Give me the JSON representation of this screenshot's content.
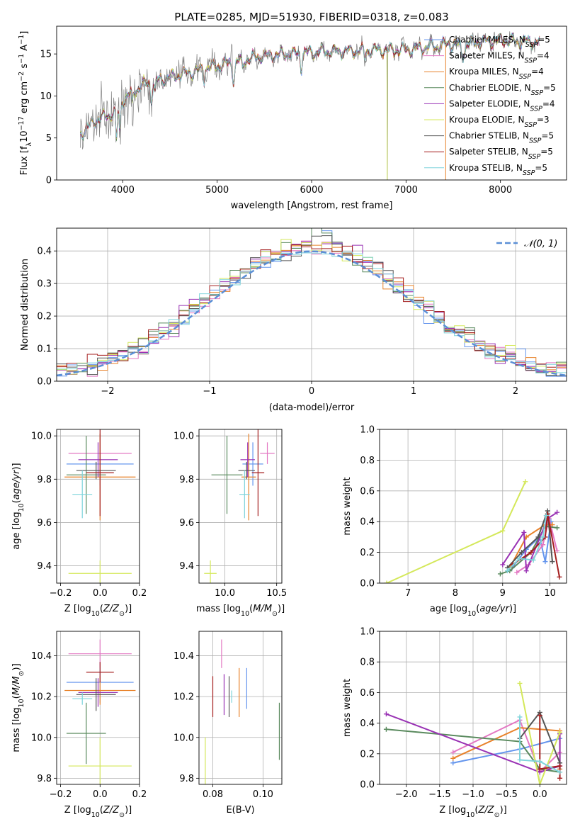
{
  "page": {
    "title": "PLATE=0285, MJD=51930, FIBERID=0318, z=0.083"
  },
  "chart_data": [
    {
      "id": "spectrum",
      "type": "line",
      "title": "PLATE=0285, MJD=51930, FIBERID=0318, z=0.083",
      "xlabel": "wavelength [Angstrom, rest frame]",
      "ylabel": "Flux [fλ10−17 erg cm−2 s−1 A−1]",
      "xlim": [
        3300,
        8700
      ],
      "ylim": [
        0,
        18.3
      ],
      "xticks": [
        4000,
        5000,
        6000,
        7000,
        8000
      ],
      "yticks": [
        0,
        5,
        10,
        15
      ],
      "grid": false,
      "legend_position": "right",
      "continuum_points": [
        [
          3550,
          5.5
        ],
        [
          3700,
          7
        ],
        [
          3900,
          8
        ],
        [
          4000,
          9.5
        ],
        [
          4200,
          11.3
        ],
        [
          4500,
          12.2
        ],
        [
          5000,
          13.6
        ],
        [
          5500,
          14.8
        ],
        [
          6000,
          15.2
        ],
        [
          6500,
          15.4
        ],
        [
          7000,
          15.5
        ],
        [
          7500,
          16.2
        ],
        [
          8000,
          16.6
        ],
        [
          8400,
          16.4
        ]
      ],
      "series": [
        {
          "name": "Chabrier MILES, NSSP=5",
          "color": "#6495ED"
        },
        {
          "name": "Salpeter MILES, NSSP=4",
          "color": "#E377C2"
        },
        {
          "name": "Kroupa MILES, NSSP=4",
          "color": "#E8822A"
        },
        {
          "name": "Chabrier ELODIE, NSSP=5",
          "color": "#5A8A5E"
        },
        {
          "name": "Salpeter ELODIE, NSSP=4",
          "color": "#9932B4"
        },
        {
          "name": "Kroupa ELODIE, NSSP=3",
          "color": "#D4E85A"
        },
        {
          "name": "Chabrier STELIB, NSSP=5",
          "color": "#555555"
        },
        {
          "name": "Salpeter STELIB, NSSP=5",
          "color": "#A51F1F"
        },
        {
          "name": "Kroupa STELIB, NSSP=5",
          "color": "#7FD4DB"
        }
      ]
    },
    {
      "id": "residuals",
      "type": "line",
      "xlabel": "(data-model)/error",
      "ylabel": "Normed distribution",
      "xlim": [
        -2.5,
        2.5
      ],
      "ylim": [
        0,
        0.47
      ],
      "xticks": [
        -2,
        -1,
        0,
        1,
        2
      ],
      "yticks": [
        0.0,
        0.1,
        0.2,
        0.3,
        0.4
      ],
      "grid": true,
      "legend": "𝒩(0, 1)",
      "legend_position": "top-right",
      "gaussian": {
        "mean": 0,
        "sigma": 1,
        "color": "#5B8FD6"
      },
      "histogram_step": 0.1,
      "histogram_colors": [
        "#6495ED",
        "#E377C2",
        "#E8822A",
        "#5A8A5E",
        "#9932B4",
        "#D4E85A",
        "#555555",
        "#A51F1F",
        "#7FD4DB"
      ]
    },
    {
      "id": "age-vs-Z",
      "type": "scatter",
      "xlabel": "Z [log10(Z/Z⊙)]",
      "ylabel": "age  [log10(age/yr)]",
      "xlim": [
        -0.22,
        0.2
      ],
      "ylim": [
        9.32,
        10.03
      ],
      "xticks": [
        -0.2,
        0.0,
        0.2
      ],
      "yticks": [
        9.4,
        9.6,
        9.8,
        10.0
      ],
      "grid": true,
      "points": [
        {
          "x": 0.0,
          "y": 9.87,
          "xerr": 0.17,
          "yerr": 0.1,
          "color": "#6495ED"
        },
        {
          "x": 0.0,
          "y": 9.92,
          "xerr": 0.16,
          "yerr": 0.05,
          "color": "#E377C2"
        },
        {
          "x": 0.0,
          "y": 9.81,
          "xerr": 0.18,
          "yerr": 0.2,
          "color": "#E8822A"
        },
        {
          "x": -0.07,
          "y": 9.82,
          "xerr": 0.1,
          "yerr": 0.18,
          "color": "#5A8A5E"
        },
        {
          "x": -0.01,
          "y": 9.89,
          "xerr": 0.1,
          "yerr": 0.08,
          "color": "#9932B4"
        },
        {
          "x": 0.0,
          "y": 9.365,
          "xerr": 0.16,
          "yerr": 0.06,
          "color": "#D4E85A"
        },
        {
          "x": -0.02,
          "y": 9.84,
          "xerr": 0.1,
          "yerr": 0.04,
          "color": "#555555"
        },
        {
          "x": 0.0,
          "y": 9.83,
          "xerr": 0.07,
          "yerr": 0.2,
          "color": "#A51F1F"
        },
        {
          "x": -0.09,
          "y": 9.73,
          "xerr": 0.05,
          "yerr": 0.11,
          "color": "#7FD4DB"
        }
      ]
    },
    {
      "id": "age-vs-mass",
      "type": "scatter",
      "xlabel": "mass [log10(M/M⊙)]",
      "ylabel": "",
      "xlim": [
        9.75,
        10.55
      ],
      "ylim": [
        9.32,
        10.03
      ],
      "xticks": [
        10.0,
        10.5
      ],
      "yticks": [
        9.4,
        9.6,
        9.8,
        10.0
      ],
      "grid": true,
      "points": [
        {
          "x": 10.27,
          "y": 9.87,
          "xerr": 0.1,
          "yerr": 0.1,
          "color": "#6495ED"
        },
        {
          "x": 10.41,
          "y": 9.92,
          "xerr": 0.07,
          "yerr": 0.05,
          "color": "#E377C2"
        },
        {
          "x": 10.23,
          "y": 9.81,
          "xerr": 0.07,
          "yerr": 0.2,
          "color": "#E8822A"
        },
        {
          "x": 10.02,
          "y": 9.82,
          "xerr": 0.15,
          "yerr": 0.18,
          "color": "#5A8A5E"
        },
        {
          "x": 10.22,
          "y": 9.89,
          "xerr": 0.07,
          "yerr": 0.08,
          "color": "#9932B4"
        },
        {
          "x": 9.86,
          "y": 9.365,
          "xerr": 0.06,
          "yerr": 0.06,
          "color": "#D4E85A"
        },
        {
          "x": 10.21,
          "y": 9.84,
          "xerr": 0.08,
          "yerr": 0.04,
          "color": "#555555"
        },
        {
          "x": 10.32,
          "y": 9.83,
          "xerr": 0.06,
          "yerr": 0.2,
          "color": "#A51F1F"
        },
        {
          "x": 10.19,
          "y": 9.73,
          "xerr": 0.05,
          "yerr": 0.11,
          "color": "#7FD4DB"
        }
      ]
    },
    {
      "id": "weight-vs-age",
      "type": "line",
      "xlabel": "age  [log10(age/yr)]",
      "ylabel": "mass weight",
      "xlim": [
        6.4,
        10.35
      ],
      "ylim": [
        0,
        1
      ],
      "xticks": [
        7,
        8,
        9,
        10
      ],
      "yticks": [
        0.0,
        0.2,
        0.4,
        0.6,
        0.8,
        1.0
      ],
      "grid": true,
      "series": [
        {
          "color": "#6495ED",
          "x": [
            9.2,
            9.5,
            9.78,
            9.9,
            10.02
          ],
          "y": [
            0.1,
            0.22,
            0.3,
            0.14,
            0.4
          ]
        },
        {
          "color": "#E377C2",
          "x": [
            9.3,
            9.55,
            9.85,
            9.98,
            10.15
          ],
          "y": [
            0.07,
            0.12,
            0.25,
            0.42,
            0.21
          ]
        },
        {
          "color": "#E8822A",
          "x": [
            9.15,
            9.5,
            9.9,
            10.05
          ],
          "y": [
            0.1,
            0.3,
            0.38,
            0.38
          ]
        },
        {
          "color": "#5A8A5E",
          "x": [
            8.95,
            9.15,
            9.6,
            9.9,
            10.15
          ],
          "y": [
            0.06,
            0.08,
            0.2,
            0.37,
            0.36
          ]
        },
        {
          "color": "#9932B4",
          "x": [
            9.0,
            9.45,
            9.5,
            9.95,
            10.15
          ],
          "y": [
            0.12,
            0.33,
            0.08,
            0.42,
            0.46
          ]
        },
        {
          "color": "#D4E85A",
          "x": [
            6.55,
            9.0,
            9.48
          ],
          "y": [
            0.0,
            0.34,
            0.66
          ]
        },
        {
          "color": "#555555",
          "x": [
            9.1,
            9.4,
            9.75,
            9.95,
            10.05
          ],
          "y": [
            0.1,
            0.2,
            0.3,
            0.47,
            0.14
          ]
        },
        {
          "color": "#A51F1F",
          "x": [
            9.2,
            9.6,
            9.9,
            9.95,
            10.2
          ],
          "y": [
            0.12,
            0.2,
            0.3,
            0.45,
            0.04
          ]
        },
        {
          "color": "#7FD4DB",
          "x": [
            9.1,
            9.35,
            9.65,
            9.85,
            9.92
          ],
          "y": [
            0.08,
            0.16,
            0.15,
            0.3,
            0.44
          ]
        }
      ]
    },
    {
      "id": "mass-vs-Z",
      "type": "scatter",
      "xlabel": "Z [log10(Z/Z⊙)]",
      "ylabel": "mass [log10(M/M⊙)]",
      "xlim": [
        -0.22,
        0.2
      ],
      "ylim": [
        9.77,
        10.52
      ],
      "xticks": [
        -0.2,
        0.0,
        0.2
      ],
      "yticks": [
        9.8,
        10.0,
        10.2,
        10.4
      ],
      "grid": true,
      "points": [
        {
          "x": 0.0,
          "y": 10.27,
          "xerr": 0.17,
          "yerr": 0.1,
          "color": "#6495ED"
        },
        {
          "x": 0.0,
          "y": 10.41,
          "xerr": 0.16,
          "yerr": 0.07,
          "color": "#E377C2"
        },
        {
          "x": 0.0,
          "y": 10.23,
          "xerr": 0.18,
          "yerr": 0.07,
          "color": "#E8822A"
        },
        {
          "x": -0.07,
          "y": 10.02,
          "xerr": 0.1,
          "yerr": 0.15,
          "color": "#5A8A5E"
        },
        {
          "x": -0.01,
          "y": 10.22,
          "xerr": 0.1,
          "yerr": 0.07,
          "color": "#9932B4"
        },
        {
          "x": 0.0,
          "y": 9.86,
          "xerr": 0.16,
          "yerr": 0.14,
          "color": "#D4E85A"
        },
        {
          "x": -0.02,
          "y": 10.21,
          "xerr": 0.1,
          "yerr": 0.08,
          "color": "#555555"
        },
        {
          "x": 0.0,
          "y": 10.32,
          "xerr": 0.07,
          "yerr": 0.05,
          "color": "#A51F1F"
        },
        {
          "x": -0.09,
          "y": 10.19,
          "xerr": 0.05,
          "yerr": 0.03,
          "color": "#7FD4DB"
        }
      ]
    },
    {
      "id": "mass-vs-ebv",
      "type": "scatter",
      "xlabel": "E(B-V)",
      "ylabel": "",
      "xlim": [
        0.0745,
        0.1075
      ],
      "ylim": [
        9.77,
        10.52
      ],
      "xticks": [
        0.08,
        0.1
      ],
      "yticks": [
        9.8,
        10.0,
        10.2,
        10.4
      ],
      "grid": true,
      "points": [
        {
          "x": 0.0935,
          "y": 10.24,
          "yerr": 0.1,
          "color": "#6495ED"
        },
        {
          "x": 0.0835,
          "y": 10.41,
          "yerr": 0.07,
          "color": "#E377C2"
        },
        {
          "x": 0.0905,
          "y": 10.22,
          "yerr": 0.12,
          "color": "#E8822A"
        },
        {
          "x": 0.1065,
          "y": 10.03,
          "yerr": 0.14,
          "color": "#5A8A5E"
        },
        {
          "x": 0.0845,
          "y": 10.21,
          "yerr": 0.1,
          "color": "#9932B4"
        },
        {
          "x": 0.077,
          "y": 9.86,
          "yerr": 0.14,
          "color": "#D4E85A"
        },
        {
          "x": 0.0865,
          "y": 10.2,
          "yerr": 0.1,
          "color": "#555555"
        },
        {
          "x": 0.08,
          "y": 10.2,
          "yerr": 0.1,
          "color": "#A51F1F"
        },
        {
          "x": 0.0875,
          "y": 10.2,
          "yerr": 0.03,
          "color": "#7FD4DB"
        }
      ]
    },
    {
      "id": "weight-vs-Z",
      "type": "line",
      "xlabel": "Z [log10(Z/Z⊙)]",
      "ylabel": "mass weight",
      "xlim": [
        -2.4,
        0.4
      ],
      "ylim": [
        0,
        1
      ],
      "xticks": [
        -2.0,
        -1.5,
        -1.0,
        -0.5,
        0.0
      ],
      "yticks": [
        0.0,
        0.2,
        0.4,
        0.6,
        0.8,
        1.0
      ],
      "grid": true,
      "series": [
        {
          "color": "#6495ED",
          "x": [
            -1.3,
            -0.3,
            0.3,
            0.3
          ],
          "y": [
            0.14,
            0.23,
            0.3,
            0.1
          ]
        },
        {
          "color": "#E377C2",
          "x": [
            -1.3,
            -0.3,
            0.0,
            0.3
          ],
          "y": [
            0.21,
            0.42,
            0.08,
            0.21
          ]
        },
        {
          "color": "#E8822A",
          "x": [
            -1.3,
            -0.3,
            0.3,
            0.3
          ],
          "y": [
            0.17,
            0.37,
            0.35,
            0.1
          ]
        },
        {
          "color": "#5A8A5E",
          "x": [
            -2.3,
            -0.3,
            0.0,
            0.3
          ],
          "y": [
            0.36,
            0.28,
            0.1,
            0.08
          ]
        },
        {
          "color": "#9932B4",
          "x": [
            -2.3,
            0.0,
            0.3,
            0.3
          ],
          "y": [
            0.46,
            0.08,
            0.12,
            0.33
          ]
        },
        {
          "color": "#D4E85A",
          "x": [
            -0.3,
            0.0,
            0.3
          ],
          "y": [
            0.66,
            0.0,
            0.34
          ]
        },
        {
          "color": "#555555",
          "x": [
            -0.3,
            0.0,
            0.3
          ],
          "y": [
            0.3,
            0.47,
            0.14
          ]
        },
        {
          "color": "#A51F1F",
          "x": [
            0.0,
            0.0,
            0.3,
            0.3
          ],
          "y": [
            0.45,
            0.1,
            0.12,
            0.04
          ]
        },
        {
          "color": "#7FD4DB",
          "x": [
            -0.3,
            -0.3,
            0.0,
            0.3
          ],
          "y": [
            0.44,
            0.16,
            0.15,
            0.08
          ]
        }
      ]
    }
  ]
}
